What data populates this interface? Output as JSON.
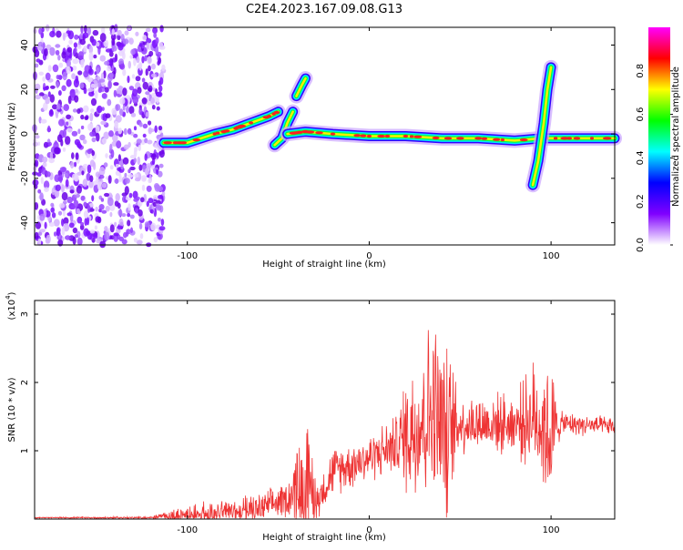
{
  "title": "C2E4.2023.167.09.08.G13",
  "chart_data": [
    {
      "type": "heatmap",
      "xlabel": "Height of straight line (km)",
      "ylabel": "Frequency (Hz)",
      "xlim": [
        -184,
        135
      ],
      "ylim": [
        -50,
        48
      ],
      "x_ticks": [
        -100,
        0,
        100
      ],
      "y_ticks": [
        -40,
        -20,
        0,
        20,
        40
      ],
      "colorbar": {
        "label": "Normalized spectral amplitude",
        "range": [
          0.0,
          1.0
        ],
        "ticks": [
          0.0,
          0.2,
          0.4,
          0.6,
          0.8
        ],
        "colors": [
          "#ffffff",
          "#8000ff",
          "#0000ff",
          "#00ffff",
          "#00ff00",
          "#ffff00",
          "#ff0000",
          "#ff00ff"
        ]
      },
      "noise_region": {
        "x_from": -184,
        "x_to": -113
      },
      "trend_segments": [
        {
          "points": [
            [
              -113,
              -4
            ],
            [
              -100,
              -4
            ],
            [
              -85,
              0
            ],
            [
              -75,
              2
            ],
            [
              -65,
              5
            ],
            [
              -55,
              8
            ],
            [
              -50,
              10
            ]
          ]
        },
        {
          "points": [
            [
              -52,
              -5
            ],
            [
              -48,
              -2
            ],
            [
              -45,
              5
            ],
            [
              -42,
              10
            ]
          ]
        },
        {
          "points": [
            [
              -45,
              0
            ],
            [
              -35,
              1
            ],
            [
              -20,
              0
            ],
            [
              0,
              -1
            ],
            [
              20,
              -1
            ],
            [
              40,
              -2
            ],
            [
              60,
              -2
            ],
            [
              80,
              -3
            ],
            [
              95,
              -2
            ],
            [
              110,
              -2
            ],
            [
              135,
              -2
            ]
          ]
        },
        {
          "points": [
            [
              -40,
              17
            ],
            [
              -37,
              22
            ],
            [
              -35,
              25
            ]
          ]
        },
        {
          "points": [
            [
              90,
              -23
            ],
            [
              93,
              -12
            ],
            [
              96,
              5
            ],
            [
              98,
              20
            ],
            [
              100,
              30
            ]
          ]
        }
      ]
    },
    {
      "type": "line",
      "xlabel": "Height of straight line (km)",
      "ylabel": "SNR (10 * v/v)",
      "y_scale_label_base": "(x10",
      "y_scale_label_exp": "4",
      "y_scale_label_end": ")",
      "xlim": [
        -184,
        135
      ],
      "ylim": [
        0,
        3.2
      ],
      "x_ticks": [
        -100,
        0,
        100
      ],
      "y_ticks": [
        1,
        2,
        3
      ],
      "series_color": "#ee3333",
      "envelope": [
        {
          "x": -184,
          "base": 0.02,
          "amp": 0.01
        },
        {
          "x": -120,
          "base": 0.02,
          "amp": 0.02
        },
        {
          "x": -105,
          "base": 0.05,
          "amp": 0.15
        },
        {
          "x": -60,
          "base": 0.15,
          "amp": 0.25
        },
        {
          "x": -45,
          "base": 0.3,
          "amp": 0.3
        },
        {
          "x": -35,
          "base": 0.6,
          "amp": 1.0
        },
        {
          "x": -28,
          "base": 0.3,
          "amp": 0.3
        },
        {
          "x": -20,
          "base": 0.7,
          "amp": 0.4
        },
        {
          "x": 0,
          "base": 0.9,
          "amp": 0.4
        },
        {
          "x": 15,
          "base": 1.1,
          "amp": 0.5
        },
        {
          "x": 22,
          "base": 1.3,
          "amp": 1.2
        },
        {
          "x": 35,
          "base": 1.6,
          "amp": 1.6
        },
        {
          "x": 42,
          "base": 1.2,
          "amp": 1.6
        },
        {
          "x": 50,
          "base": 1.4,
          "amp": 0.5
        },
        {
          "x": 80,
          "base": 1.4,
          "amp": 0.5
        },
        {
          "x": 92,
          "base": 1.5,
          "amp": 1.0
        },
        {
          "x": 100,
          "base": 1.2,
          "amp": 1.3
        },
        {
          "x": 105,
          "base": 1.4,
          "amp": 0.2
        },
        {
          "x": 135,
          "base": 1.35,
          "amp": 0.15
        }
      ]
    }
  ]
}
